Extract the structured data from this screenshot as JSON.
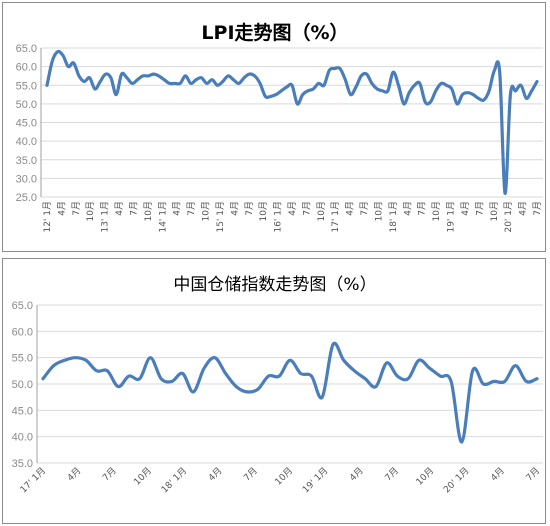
{
  "colors": {
    "series": "#4a7ebb",
    "grid": "#d9d9d9",
    "axis_text": "#8a8a8a"
  },
  "chart_data": [
    {
      "type": "line",
      "title": "LPI走势图（%）",
      "xlabel": "",
      "ylabel": "",
      "ylim": [
        25.0,
        65.0
      ],
      "yticks": [
        "25.0",
        "30.0",
        "35.0",
        "40.0",
        "45.0",
        "50.0",
        "55.0",
        "60.0",
        "65.0"
      ],
      "grid": true,
      "legend": "none",
      "x_tick_labels": [
        "12' 1月",
        "4月",
        "7月",
        "10月",
        "13' 1月",
        "4月",
        "7月",
        "10月",
        "14' 1月",
        "4月",
        "7月",
        "10月",
        "15' 1月",
        "4月",
        "7月",
        "10月",
        "16' 1月",
        "4月",
        "7月",
        "10月",
        "17' 1月",
        "4月",
        "7月",
        "10月",
        "18' 1月",
        "4月",
        "7月",
        "10月",
        "19' 1月",
        "4月",
        "7月",
        "10月",
        "20' 1月",
        "4月",
        "7月"
      ],
      "series": [
        {
          "values": [
            55.0,
            61.5,
            64.0,
            63.0,
            60.0,
            61.0,
            57.5,
            56.0,
            57.0,
            54.0,
            56.0,
            58.0,
            57.0,
            52.5,
            58.0,
            57.0,
            55.5,
            56.5,
            57.5,
            57.5,
            58.0,
            57.5,
            56.5,
            55.5,
            55.5,
            55.5,
            57.5,
            55.5,
            56.5,
            57.0,
            55.5,
            56.5,
            55.0,
            56.0,
            57.5,
            56.5,
            55.5,
            57.0,
            58.0,
            57.5,
            55.5,
            52.0,
            52.0,
            52.5,
            53.5,
            54.5,
            55.0,
            50.0,
            52.5,
            53.5,
            54.0,
            55.5,
            55.0,
            59.0,
            59.5,
            59.5,
            56.5,
            52.5,
            54.5,
            57.5,
            58.0,
            55.5,
            54.0,
            53.5,
            53.5,
            58.5,
            55.0,
            50.0,
            53.0,
            55.0,
            55.5,
            50.5,
            50.5,
            53.5,
            55.5,
            55.0,
            54.0,
            50.0,
            52.5,
            53.0,
            52.5,
            51.5,
            51.0,
            53.5,
            59.0,
            58.5,
            26.0,
            52.5,
            53.5,
            55.0,
            51.5,
            53.5,
            56.0
          ]
        }
      ]
    },
    {
      "type": "line",
      "title": "中国仓储指数走势图（%）",
      "xlabel": "",
      "ylabel": "",
      "ylim": [
        35.0,
        65.0
      ],
      "yticks": [
        "35.0",
        "40.0",
        "45.0",
        "50.0",
        "55.0",
        "60.0",
        "65.0"
      ],
      "grid": true,
      "legend": "none",
      "x_tick_labels": [
        "17' 1月",
        "4月",
        "7月",
        "10月",
        "18' 1月",
        "4月",
        "7月",
        "10月",
        "19' 1月",
        "4月",
        "7月",
        "10月",
        "20' 1月",
        "4月",
        "7月"
      ],
      "series": [
        {
          "values": [
            51.0,
            53.5,
            54.5,
            55.0,
            54.5,
            52.5,
            52.5,
            49.5,
            51.5,
            51.0,
            55.0,
            51.0,
            50.5,
            52.0,
            48.5,
            53.0,
            55.0,
            52.0,
            49.5,
            48.5,
            49.0,
            51.5,
            51.5,
            54.5,
            52.0,
            51.5,
            47.5,
            57.5,
            54.5,
            52.5,
            51.0,
            49.5,
            54.0,
            51.5,
            51.0,
            54.5,
            53.0,
            51.5,
            50.5,
            39.0,
            52.5,
            50.0,
            50.5,
            50.5,
            53.5,
            50.5,
            51.0
          ]
        }
      ]
    }
  ]
}
